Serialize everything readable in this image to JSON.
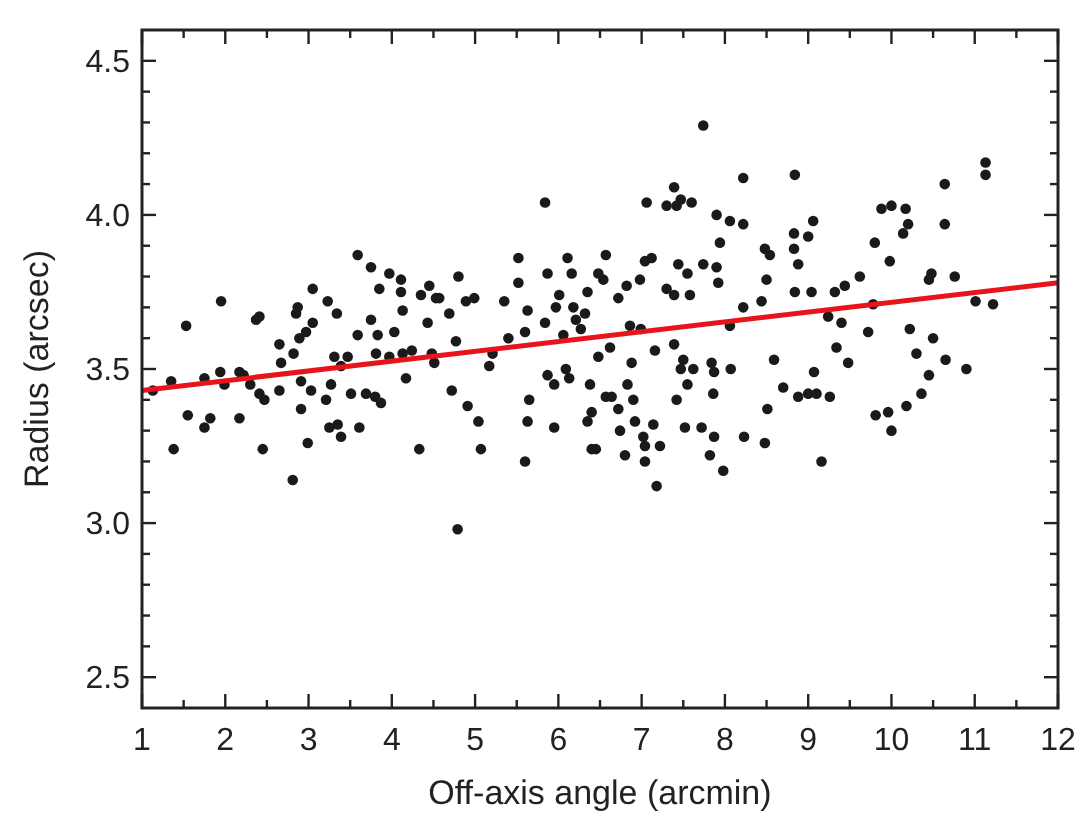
{
  "chart_data": {
    "type": "scatter",
    "xlabel": "Off-axis angle (arcmin)",
    "ylabel": "Radius (arcsec)",
    "xlim": [
      1,
      12
    ],
    "ylim": [
      2.4,
      4.6
    ],
    "grid": false,
    "marker": "circle",
    "xticks": [
      1,
      {
        "value": 1.5,
        "label": null
      },
      2,
      {
        "value": 2.5,
        "label": null
      },
      3,
      {
        "value": 3.5,
        "label": null
      },
      4,
      {
        "value": 4.5,
        "label": null
      },
      5,
      {
        "value": 5.5,
        "label": null
      },
      6,
      {
        "value": 6.5,
        "label": null
      },
      7,
      {
        "value": 7.5,
        "label": null
      },
      8,
      {
        "value": 8.5,
        "label": null
      },
      9,
      {
        "value": 9.5,
        "label": null
      },
      10,
      {
        "value": 10.5,
        "label": null
      },
      11,
      {
        "value": 11.5,
        "label": null
      },
      12
    ],
    "yticks": [
      2.5,
      {
        "value": 2.6,
        "label": null
      },
      {
        "value": 2.7,
        "label": null
      },
      {
        "value": 2.8,
        "label": null
      },
      {
        "value": 2.9,
        "label": null
      },
      {
        "value": 3,
        "label": "3.0"
      },
      {
        "value": 3.1,
        "label": null
      },
      {
        "value": 3.2,
        "label": null
      },
      {
        "value": 3.3,
        "label": null
      },
      {
        "value": 3.4,
        "label": null
      },
      3.5,
      {
        "value": 3.6,
        "label": null
      },
      {
        "value": 3.7,
        "label": null
      },
      {
        "value": 3.8,
        "label": null
      },
      {
        "value": 3.9,
        "label": null
      },
      {
        "value": 4,
        "label": "4.0"
      },
      {
        "value": 4.1,
        "label": null
      },
      {
        "value": 4.2,
        "label": null
      },
      {
        "value": 4.3,
        "label": null
      },
      {
        "value": 4.4,
        "label": null
      },
      4.5
    ],
    "series": [
      {
        "color": "#1a1a1a",
        "x": [
          1.13,
          1.35,
          1.53,
          1.38,
          1.55,
          1.75,
          1.82,
          1.75,
          1.95,
          1.94,
          1.99,
          2.17,
          2.17,
          2.22,
          2.3,
          2.37,
          2.41,
          2.41,
          2.47,
          2.45,
          2.65,
          2.65,
          2.67,
          2.81,
          2.82,
          2.85,
          2.87,
          2.89,
          2.91,
          2.91,
          2.97,
          2.99,
          3.03,
          3.05,
          3.05,
          3.21,
          3.23,
          3.25,
          3.27,
          3.31,
          3.34,
          3.35,
          3.39,
          3.39,
          3.47,
          3.51,
          3.59,
          3.59,
          3.61,
          3.69,
          3.75,
          3.75,
          3.8,
          3.83,
          3.85,
          3.87,
          3.81,
          3.97,
          3.97,
          4.03,
          4.11,
          4.11,
          4.13,
          4.13,
          4.17,
          4.24,
          4.33,
          4.35,
          4.43,
          4.45,
          4.48,
          4.51,
          4.53,
          4.69,
          4.72,
          4.79,
          4.8,
          4.77,
          4.57,
          4.89,
          4.99,
          4.91,
          5.04,
          5.07,
          5.17,
          5.21,
          5.35,
          5.4,
          5.52,
          5.52,
          5.6,
          5.6,
          5.63,
          5.65,
          5.63,
          5.84,
          5.84,
          5.87,
          5.87,
          5.95,
          5.95,
          5.97,
          6.01,
          6.06,
          6.09,
          6.11,
          6.13,
          6.16,
          6.18,
          6.21,
          6.27,
          6.32,
          6.35,
          6.35,
          6.38,
          6.4,
          6.4,
          6.45,
          6.48,
          6.54,
          6.48,
          6.57,
          6.57,
          6.62,
          6.64,
          6.72,
          6.72,
          6.74,
          6.8,
          6.82,
          6.83,
          6.86,
          6.88,
          6.9,
          6.92,
          6.98,
          6.99,
          7.04,
          7.02,
          7.04,
          7.06,
          7.12,
          7.14,
          7.04,
          7.16,
          7.18,
          7.22,
          7.3,
          7.3,
          7.39,
          7.42,
          7.39,
          7.42,
          7.39,
          7.44,
          7.47,
          7.47,
          7.5,
          7.52,
          7.55,
          7.55,
          7.58,
          7.6,
          7.62,
          7.72,
          7.74,
          7.74,
          7.82,
          7.84,
          7.86,
          7.87,
          7.87,
          7.9,
          7.92,
          7.94,
          7.9,
          7.98,
          8.06,
          8.06,
          8.07,
          8.22,
          8.22,
          8.23,
          8.22,
          8.44,
          8.48,
          8.54,
          8.5,
          8.48,
          8.51,
          8.59,
          8.7,
          8.84,
          8.83,
          8.83,
          8.88,
          8.84,
          8.88,
          9.0,
          9.04,
          9.0,
          9.06,
          9.07,
          9.1,
          9.16,
          9.24,
          9.26,
          9.32,
          9.34,
          9.4,
          9.44,
          9.48,
          9.62,
          9.72,
          9.78,
          9.8,
          9.81,
          9.88,
          9.96,
          10.0,
          9.98,
          10.0,
          10.17,
          10.14,
          10.2,
          10.18,
          10.22,
          10.3,
          10.36,
          10.45,
          10.45,
          10.48,
          10.5,
          10.64,
          10.64,
          10.65,
          10.76,
          10.9,
          11.01,
          11.13,
          11.13,
          11.22
        ],
        "values": [
          3.43,
          3.46,
          3.64,
          3.24,
          3.35,
          3.31,
          3.34,
          3.47,
          3.72,
          3.49,
          3.45,
          3.49,
          3.34,
          3.48,
          3.45,
          3.66,
          3.67,
          3.42,
          3.4,
          3.24,
          3.43,
          3.58,
          3.52,
          3.14,
          3.55,
          3.68,
          3.7,
          3.6,
          3.37,
          3.46,
          3.62,
          3.26,
          3.43,
          3.76,
          3.65,
          3.4,
          3.72,
          3.31,
          3.45,
          3.54,
          3.68,
          3.32,
          3.28,
          3.51,
          3.54,
          3.42,
          3.87,
          3.61,
          3.31,
          3.42,
          3.83,
          3.66,
          3.41,
          3.61,
          3.76,
          3.39,
          3.55,
          3.81,
          3.54,
          3.62,
          3.79,
          3.75,
          3.69,
          3.55,
          3.47,
          3.56,
          3.24,
          3.74,
          3.65,
          3.77,
          3.55,
          3.52,
          3.73,
          3.68,
          3.43,
          2.98,
          3.8,
          3.59,
          3.73,
          3.72,
          3.73,
          3.38,
          3.33,
          3.24,
          3.51,
          3.55,
          3.72,
          3.6,
          3.86,
          3.78,
          3.2,
          3.62,
          3.69,
          3.4,
          3.33,
          4.04,
          3.65,
          3.81,
          3.48,
          3.45,
          3.31,
          3.7,
          3.74,
          3.61,
          3.5,
          3.86,
          3.47,
          3.81,
          3.7,
          3.66,
          3.63,
          3.68,
          3.75,
          3.33,
          3.45,
          3.36,
          3.24,
          3.24,
          3.81,
          3.79,
          3.54,
          3.87,
          3.41,
          3.57,
          3.41,
          3.73,
          3.37,
          3.3,
          3.22,
          3.77,
          3.45,
          3.64,
          3.52,
          3.4,
          3.33,
          3.79,
          3.63,
          3.85,
          3.28,
          3.25,
          4.04,
          3.86,
          3.32,
          3.2,
          3.56,
          3.12,
          3.25,
          4.03,
          3.76,
          4.09,
          4.03,
          3.58,
          3.4,
          3.74,
          3.84,
          4.05,
          3.5,
          3.53,
          3.31,
          3.81,
          3.45,
          3.74,
          4.04,
          3.5,
          3.31,
          3.84,
          4.29,
          3.22,
          3.52,
          3.42,
          3.49,
          3.28,
          3.83,
          3.78,
          3.91,
          4.0,
          3.17,
          3.64,
          3.98,
          3.5,
          3.97,
          3.7,
          3.28,
          4.12,
          3.72,
          3.89,
          3.87,
          3.79,
          3.26,
          3.37,
          3.53,
          3.44,
          4.13,
          3.94,
          3.89,
          3.84,
          3.75,
          3.41,
          3.93,
          3.75,
          3.42,
          3.98,
          3.49,
          3.42,
          3.2,
          3.67,
          3.41,
          3.75,
          3.57,
          3.65,
          3.77,
          3.52,
          3.8,
          3.62,
          3.71,
          3.91,
          3.35,
          4.02,
          3.36,
          4.03,
          3.85,
          3.3,
          4.02,
          3.94,
          3.97,
          3.38,
          3.63,
          3.55,
          3.42,
          3.48,
          3.79,
          3.81,
          3.6,
          4.1,
          3.97,
          3.53,
          3.8,
          3.5,
          3.72,
          4.17,
          4.13,
          3.71
        ]
      },
      {
        "type": "line",
        "color": "#e8141c",
        "marker": "none",
        "x": [
          1,
          12
        ],
        "values": [
          3.43,
          3.78
        ]
      }
    ]
  }
}
